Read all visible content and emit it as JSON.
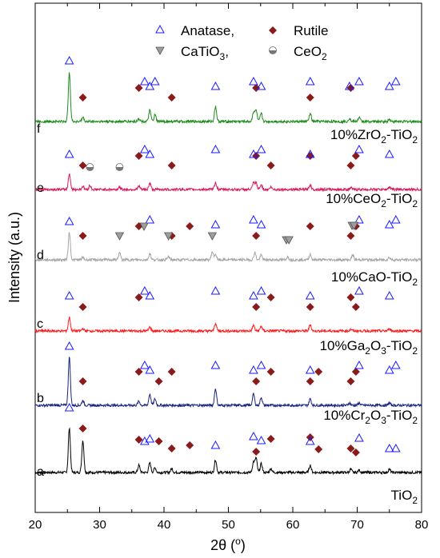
{
  "chart_data": {
    "type": "line",
    "xlabel": "2θ (°)",
    "ylabel": "Intensity (a.u.)",
    "xlim": [
      20,
      80
    ],
    "xticks": [
      20,
      30,
      40,
      50,
      60,
      70,
      80
    ],
    "y_ticks_shown": false,
    "grid": false,
    "legend": {
      "placement": "top",
      "entries": [
        {
          "name": "Anatase,",
          "marker": "open-triangle-up",
          "color": "#1a1aff"
        },
        {
          "name": "Rutile",
          "marker": "filled-diamond",
          "color": "#8b1a1a"
        },
        {
          "name": "CaTiO3,",
          "marker": "filled-triangle-down",
          "color": "#6e6e6e"
        },
        {
          "name": "CeO2",
          "marker": "half-filled-circle",
          "color": "#6e6e6e"
        }
      ]
    },
    "anatase_peaks": [
      25.3,
      37.0,
      37.8,
      38.6,
      48.0,
      53.9,
      55.1,
      62.7,
      68.8,
      70.3,
      75.0,
      76.0
    ],
    "rutile_peaks": [
      27.4,
      36.1,
      39.2,
      41.2,
      44.0,
      54.3,
      56.6,
      62.7,
      69.0,
      69.8
    ],
    "catio3_peaks": [
      33.1,
      36.9,
      40.7,
      47.5,
      59.0,
      59.4,
      69.2,
      69.5
    ],
    "ceo2_peaks": [
      28.5,
      33.1
    ],
    "series": [
      {
        "id": "a",
        "name": "TiO2",
        "label_main": "TiO",
        "label_sub": "2",
        "label_end": "",
        "color": "#000000",
        "peaks": [
          [
            25.3,
            55
          ],
          [
            27.4,
            40
          ],
          [
            36.1,
            9
          ],
          [
            37.8,
            12
          ],
          [
            38.6,
            6
          ],
          [
            41.2,
            5
          ],
          [
            48.0,
            16
          ],
          [
            53.9,
            13
          ],
          [
            54.3,
            18
          ],
          [
            55.1,
            11
          ],
          [
            56.6,
            5
          ],
          [
            62.7,
            9
          ],
          [
            69.0,
            4
          ],
          [
            70.3,
            3
          ],
          [
            75.0,
            4
          ]
        ],
        "rutile_markers": [
          27.4,
          36.1,
          39.2,
          41.2,
          44.0,
          54.3,
          56.6,
          62.7,
          64.0,
          69.0,
          69.8
        ],
        "anatase_markers": [
          25.3,
          37.0,
          37.8,
          48.0,
          53.9,
          55.1,
          62.7,
          70.3,
          75.0,
          76.0
        ]
      },
      {
        "id": "b",
        "name": "10%Cr2O3-TiO2",
        "label_main": "10%Cr",
        "label_sub": "2",
        "label_end": "O",
        "label_sub2": "3",
        "label_tail": "-TiO",
        "label_sub3": "2",
        "color": "#1a237e",
        "peaks": [
          [
            25.3,
            60
          ],
          [
            27.4,
            6
          ],
          [
            36.1,
            5
          ],
          [
            37.8,
            14
          ],
          [
            38.6,
            8
          ],
          [
            48.0,
            21
          ],
          [
            53.9,
            14
          ],
          [
            55.1,
            10
          ],
          [
            62.7,
            8
          ],
          [
            68.8,
            3
          ],
          [
            70.3,
            3
          ],
          [
            75.0,
            3
          ]
        ],
        "rutile_markers": [
          27.4,
          36.1,
          39.2,
          41.2,
          54.3,
          56.6,
          62.7,
          64.0,
          69.0,
          69.8
        ],
        "anatase_markers": [
          25.3,
          37.0,
          37.8,
          48.0,
          53.9,
          55.1,
          62.7,
          70.3,
          75.0,
          76.0
        ]
      },
      {
        "id": "c",
        "name": "10%Ga2O3-TiO2",
        "label_main": "10%Ga",
        "label_sub": "2",
        "label_end": "O",
        "label_sub2": "3",
        "label_tail": "-TiO",
        "label_sub3": "2",
        "color": "#ff1a1a",
        "peaks": [
          [
            25.3,
            17
          ],
          [
            27.4,
            3
          ],
          [
            37.8,
            5
          ],
          [
            48.0,
            10
          ],
          [
            53.9,
            7
          ],
          [
            55.1,
            6
          ],
          [
            62.7,
            8
          ],
          [
            69.0,
            2
          ],
          [
            75.0,
            3
          ]
        ],
        "rutile_markers": [
          27.4,
          36.1,
          54.3,
          56.6,
          62.7,
          69.0,
          69.8
        ],
        "anatase_markers": [
          25.3,
          37.0,
          37.8,
          48.0,
          53.9,
          55.1,
          62.7,
          70.3,
          75.0
        ]
      },
      {
        "id": "d",
        "name": "10%CaO-TiO2",
        "label_main": "10%CaO-TiO",
        "label_sub": "2",
        "label_end": "",
        "color": "#a6a6a6",
        "peaks": [
          [
            25.3,
            34
          ],
          [
            27.4,
            3
          ],
          [
            33.1,
            9
          ],
          [
            37.8,
            8
          ],
          [
            40.7,
            4
          ],
          [
            47.5,
            10
          ],
          [
            48.0,
            7
          ],
          [
            54.1,
            9
          ],
          [
            55.1,
            6
          ],
          [
            59.2,
            4
          ],
          [
            62.7,
            7
          ],
          [
            69.3,
            6
          ],
          [
            75.0,
            3
          ]
        ],
        "rutile_markers": [
          27.4,
          36.1,
          41.2,
          44.0,
          54.3,
          62.7,
          69.0,
          69.8
        ],
        "anatase_markers": [
          25.3,
          37.8,
          48.0,
          53.9,
          55.1,
          70.3,
          75.0,
          76.0
        ],
        "catio3_markers": [
          33.1,
          36.9,
          40.7,
          47.5,
          59.0,
          59.4,
          69.2,
          69.5
        ]
      },
      {
        "id": "e",
        "name": "10%CeO2-TiO2",
        "label_main": "10%CeO",
        "label_sub": "2",
        "label_end": "-TiO",
        "label_sub2": "2",
        "label_tail": "",
        "label_sub3": "",
        "color": "#d81b60",
        "peaks": [
          [
            25.3,
            20
          ],
          [
            27.4,
            4
          ],
          [
            28.5,
            5
          ],
          [
            33.1,
            3
          ],
          [
            36.1,
            4
          ],
          [
            37.8,
            8
          ],
          [
            48.0,
            9
          ],
          [
            53.9,
            8
          ],
          [
            54.3,
            8
          ],
          [
            55.1,
            6
          ],
          [
            56.6,
            3
          ],
          [
            62.7,
            6
          ],
          [
            69.0,
            2
          ],
          [
            75.0,
            3
          ]
        ],
        "rutile_markers": [
          27.4,
          36.1,
          41.2,
          54.3,
          56.6,
          62.7,
          69.0,
          69.8
        ],
        "anatase_markers": [
          25.3,
          37.0,
          37.8,
          48.0,
          53.9,
          55.1,
          62.7,
          70.3,
          75.0
        ],
        "ceo2_markers": [
          28.5,
          33.1
        ]
      },
      {
        "id": "f",
        "name": "10%ZrO2-TiO2",
        "label_main": "10%ZrO",
        "label_sub": "2",
        "label_end": "-TiO",
        "label_sub2": "2",
        "label_tail": "",
        "label_sub3": "",
        "color": "#1e8c1e",
        "peaks": [
          [
            25.3,
            62
          ],
          [
            27.4,
            5
          ],
          [
            36.1,
            4
          ],
          [
            37.8,
            14
          ],
          [
            38.6,
            8
          ],
          [
            48.0,
            19
          ],
          [
            53.9,
            12
          ],
          [
            54.3,
            14
          ],
          [
            55.1,
            10
          ],
          [
            62.7,
            10
          ],
          [
            68.8,
            4
          ],
          [
            70.3,
            5
          ],
          [
            75.0,
            3
          ]
        ],
        "rutile_markers": [
          27.4,
          36.1,
          41.2,
          54.3,
          62.7,
          69.0
        ],
        "anatase_markers": [
          25.3,
          37.0,
          37.8,
          38.6,
          48.0,
          53.9,
          55.1,
          62.7,
          68.8,
          70.3,
          75.0,
          76.0
        ]
      }
    ]
  }
}
